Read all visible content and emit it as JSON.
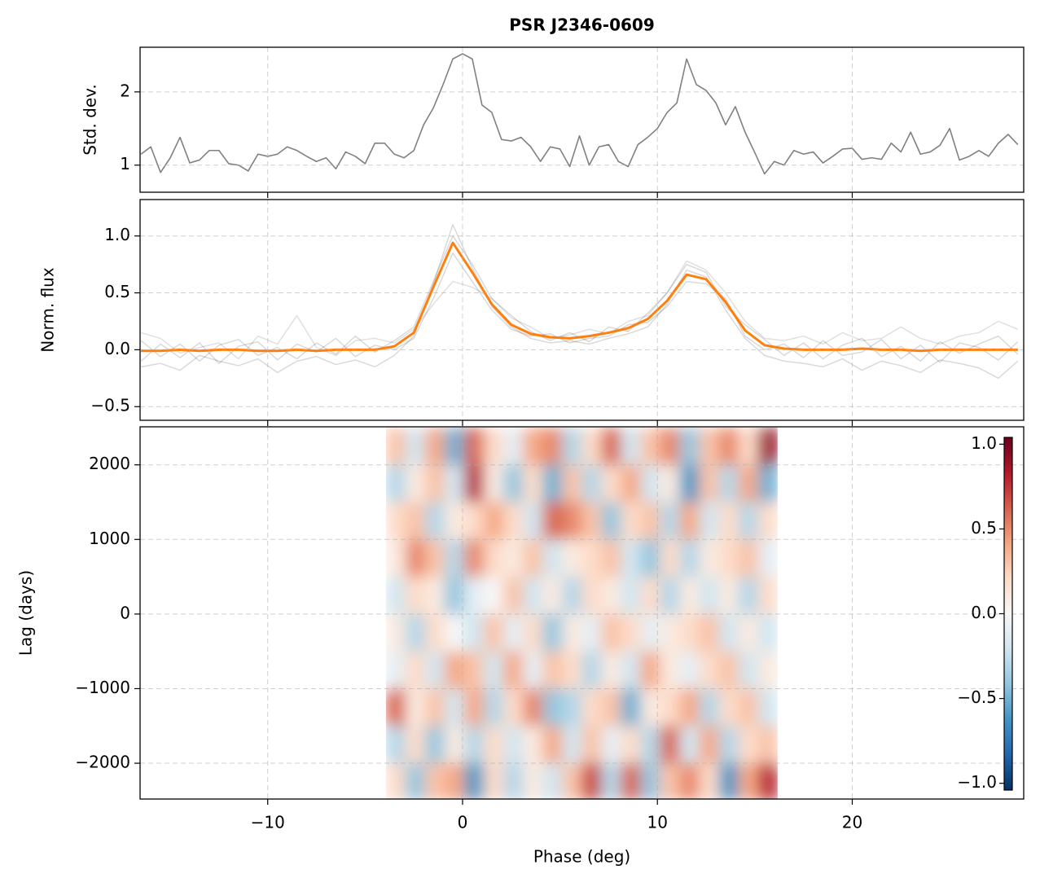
{
  "chart_data": [
    {
      "type": "line",
      "title": "PSR J2346-0609",
      "ylabel": "Std. dev.",
      "xlim": [
        -16.55,
        28.8
      ],
      "ylim": [
        0.63,
        2.61
      ],
      "xticks": [
        -10,
        0,
        10,
        20
      ],
      "yticks": [
        1,
        2
      ],
      "grid": true,
      "x": [
        -16.5,
        -16,
        -15.5,
        -15,
        -14.5,
        -14,
        -13.5,
        -13,
        -12.5,
        -12,
        -11.5,
        -11,
        -10.5,
        -10,
        -9.5,
        -9,
        -8.5,
        -8,
        -7.5,
        -7,
        -6.5,
        -6,
        -5.5,
        -5,
        -4.5,
        -4,
        -3.5,
        -3,
        -2.5,
        -2,
        -1.5,
        -1,
        -0.5,
        0,
        0.5,
        1,
        1.5,
        2,
        2.5,
        3,
        3.5,
        4,
        4.5,
        5,
        5.5,
        6,
        6.5,
        7,
        7.5,
        8,
        8.5,
        9,
        9.5,
        10,
        10.5,
        11,
        11.5,
        12,
        12.5,
        13,
        13.5,
        14,
        14.5,
        15,
        15.5,
        16,
        16.5,
        17,
        17.5,
        18,
        18.5,
        19,
        19.5,
        20,
        20.5,
        21,
        21.5,
        22,
        22.5,
        23,
        23.5,
        24,
        24.5,
        25,
        25.5,
        26,
        26.5,
        27,
        27.5,
        28,
        28.5
      ],
      "series": [
        {
          "color": "#808080",
          "width": 1.6,
          "opacity": 1,
          "values": [
            1.15,
            1.25,
            0.9,
            1.1,
            1.38,
            1.03,
            1.07,
            1.2,
            1.2,
            1.02,
            1.0,
            0.92,
            1.15,
            1.12,
            1.15,
            1.25,
            1.2,
            1.12,
            1.05,
            1.1,
            0.95,
            1.18,
            1.12,
            1.02,
            1.3,
            1.3,
            1.15,
            1.1,
            1.2,
            1.55,
            1.78,
            2.1,
            2.45,
            2.52,
            2.45,
            1.82,
            1.72,
            1.35,
            1.33,
            1.38,
            1.25,
            1.05,
            1.25,
            1.22,
            0.98,
            1.4,
            1.0,
            1.25,
            1.28,
            1.05,
            0.98,
            1.28,
            1.38,
            1.5,
            1.72,
            1.85,
            2.45,
            2.1,
            2.02,
            1.85,
            1.55,
            1.8,
            1.45,
            1.17,
            0.88,
            1.05,
            1.0,
            1.2,
            1.15,
            1.18,
            1.03,
            1.12,
            1.22,
            1.23,
            1.08,
            1.1,
            1.08,
            1.3,
            1.18,
            1.45,
            1.15,
            1.18,
            1.27,
            1.5,
            1.07,
            1.12,
            1.2,
            1.12,
            1.3,
            1.42,
            1.28
          ]
        }
      ]
    },
    {
      "type": "line",
      "ylabel": "Norm. flux",
      "xlim": [
        -16.55,
        28.8
      ],
      "ylim": [
        -0.62,
        1.32
      ],
      "xticks": [
        -10,
        0,
        10,
        20
      ],
      "yticks": [
        {
          "value": -0.5,
          "label": "−0.5"
        },
        {
          "value": 0,
          "label": "0.0"
        },
        {
          "value": 0.5,
          "label": "0.5"
        },
        {
          "value": 1,
          "label": "1.0"
        }
      ],
      "grid": true,
      "x": [
        -16.5,
        -15.5,
        -14.5,
        -13.5,
        -12.5,
        -11.5,
        -10.5,
        -9.5,
        -8.5,
        -7.5,
        -6.5,
        -5.5,
        -4.5,
        -3.5,
        -2.5,
        -1.5,
        -0.5,
        0.5,
        1.5,
        2.5,
        3.5,
        4.5,
        5.5,
        6.5,
        7.5,
        8.5,
        9.5,
        10.5,
        11.5,
        12.5,
        13.5,
        14.5,
        15.5,
        16.5,
        17.5,
        18.5,
        19.5,
        20.5,
        21.5,
        22.5,
        23.5,
        24.5,
        25.5,
        26.5,
        27.5,
        28.5
      ],
      "series": [
        {
          "color": "#000000",
          "width": 1.5,
          "opacity": 0.15,
          "values": [
            0.08,
            -0.06,
            0.05,
            -0.1,
            0.04,
            0.09,
            -0.05,
            0.02,
            -0.08,
            0.06,
            -0.04,
            0.12,
            -0.02,
            0.08,
            0.2,
            0.6,
            1.0,
            0.75,
            0.45,
            0.3,
            0.16,
            0.08,
            0.15,
            0.07,
            0.2,
            0.16,
            0.32,
            0.5,
            0.75,
            0.68,
            0.38,
            0.22,
            0.09,
            -0.05,
            0.06,
            -0.08,
            0.04,
            0.1,
            -0.06,
            0.03,
            -0.1,
            0.07,
            -0.03,
            0.05,
            0.12,
            -0.04
          ]
        },
        {
          "color": "#000000",
          "width": 1.5,
          "opacity": 0.15,
          "values": [
            -0.1,
            0.05,
            -0.07,
            0.06,
            -0.12,
            0.03,
            0.07,
            -0.09,
            0.05,
            -0.02,
            0.1,
            -0.06,
            0.04,
            0.0,
            0.1,
            0.45,
            0.85,
            0.6,
            0.35,
            0.18,
            0.12,
            0.14,
            0.06,
            0.1,
            0.12,
            0.22,
            0.24,
            0.38,
            0.6,
            0.58,
            0.45,
            0.12,
            0.0,
            0.05,
            -0.07,
            0.08,
            -0.05,
            -0.02,
            0.09,
            -0.08,
            0.04,
            -0.11,
            0.06,
            0.02,
            -0.09,
            0.07
          ]
        },
        {
          "color": "#000000",
          "width": 1.5,
          "opacity": 0.12,
          "values": [
            0.15,
            0.1,
            -0.03,
            0.02,
            0.06,
            -0.08,
            0.12,
            0.05,
            0.3,
            0.02,
            -0.05,
            0.08,
            0.1,
            0.06,
            0.18,
            0.4,
            0.6,
            0.55,
            0.45,
            0.28,
            0.2,
            0.1,
            0.13,
            0.18,
            0.14,
            0.25,
            0.3,
            0.5,
            0.78,
            0.7,
            0.5,
            0.25,
            0.1,
            0.08,
            0.12,
            0.05,
            0.15,
            0.08,
            0.1,
            0.2,
            0.1,
            0.05,
            0.12,
            0.15,
            0.25,
            0.18
          ]
        },
        {
          "color": "#000000",
          "width": 1.5,
          "opacity": 0.15,
          "values": [
            -0.15,
            -0.12,
            -0.18,
            -0.05,
            -0.1,
            -0.14,
            -0.08,
            -0.2,
            -0.1,
            -0.06,
            -0.13,
            -0.09,
            -0.15,
            -0.05,
            0.12,
            0.58,
            1.1,
            0.72,
            0.38,
            0.2,
            0.1,
            0.06,
            0.08,
            0.05,
            0.1,
            0.14,
            0.2,
            0.4,
            0.7,
            0.64,
            0.35,
            0.1,
            -0.05,
            -0.1,
            -0.12,
            -0.15,
            -0.08,
            -0.18,
            -0.1,
            -0.14,
            -0.2,
            -0.09,
            -0.12,
            -0.16,
            -0.25,
            -0.1
          ]
        },
        {
          "color": "#ff7f0e",
          "width": 3,
          "opacity": 1,
          "values": [
            -0.01,
            -0.01,
            0,
            -0.01,
            0,
            0,
            -0.01,
            -0.01,
            0,
            -0.01,
            0,
            0,
            0,
            0.03,
            0.15,
            0.55,
            0.94,
            0.68,
            0.4,
            0.22,
            0.14,
            0.11,
            0.1,
            0.12,
            0.15,
            0.19,
            0.27,
            0.43,
            0.66,
            0.62,
            0.42,
            0.17,
            0.04,
            0.01,
            0,
            0,
            0,
            0.01,
            0,
            0,
            -0.01,
            0,
            0,
            0,
            0,
            0
          ]
        }
      ]
    },
    {
      "type": "heatmap",
      "ylabel": "Lag (days)",
      "xlabel": "Phase (deg)",
      "xlim": [
        -16.55,
        28.8
      ],
      "ylim": [
        -2480,
        2510
      ],
      "xticks": [
        {
          "value": -10,
          "label": "−10"
        },
        0,
        10,
        20
      ],
      "yticks": [
        {
          "value": -2000,
          "label": "−2000"
        },
        {
          "value": -1000,
          "label": "−1000"
        },
        0,
        1000,
        2000
      ],
      "grid": true,
      "colormap": "RdBu_r",
      "x_range": [
        -3.93,
        16.17
      ],
      "y_range": [
        -2500,
        2500
      ],
      "z": [
        [
          0.3,
          -0.2,
          0.4,
          -0.5,
          0.6,
          0.2,
          -0.1,
          0.4,
          0.5,
          -0.3,
          0.2,
          0.6,
          -0.2,
          0.3,
          0.5,
          -0.4,
          0.3,
          0.5,
          0.2,
          0.9
        ],
        [
          -0.3,
          0.1,
          0.3,
          -0.2,
          0.8,
          0.1,
          -0.4,
          0.2,
          -0.5,
          0.3,
          -0.3,
          0.2,
          0.4,
          -0.2,
          0.1,
          -0.6,
          0.3,
          -0.3,
          0.4,
          -0.5
        ],
        [
          0.2,
          0.3,
          -0.3,
          0.1,
          0.2,
          0.4,
          0.2,
          -0.2,
          0.6,
          0.5,
          0.3,
          -0.4,
          0.2,
          0.3,
          -0.3,
          0.4,
          -0.2,
          0.2,
          -0.3,
          0.2
        ],
        [
          0.1,
          0.5,
          0.3,
          -0.3,
          0.5,
          0.2,
          0.1,
          0.3,
          -0.2,
          0.1,
          0.2,
          0.3,
          -0.2,
          -0.4,
          0.2,
          -0.3,
          0.1,
          0.2,
          0.3,
          -0.1
        ],
        [
          -0.2,
          0.2,
          0.1,
          -0.4,
          -0.1,
          0.0,
          0.3,
          -0.2,
          0.1,
          -0.3,
          0.2,
          0.1,
          -0.2,
          0.2,
          -0.3,
          0.1,
          -0.2,
          0.1,
          -0.3,
          0.2
        ],
        [
          0.1,
          -0.3,
          0.2,
          0.0,
          -0.2,
          0.3,
          -0.1,
          0.2,
          -0.4,
          0.1,
          -0.1,
          0.3,
          0.2,
          -0.1,
          0.1,
          0.2,
          0.3,
          -0.2,
          0.1,
          -0.2
        ],
        [
          -0.1,
          0.2,
          -0.2,
          0.4,
          0.3,
          -0.2,
          0.4,
          -0.1,
          0.3,
          0.2,
          -0.3,
          0.1,
          -0.2,
          0.4,
          0.1,
          -0.1,
          0.2,
          0.3,
          -0.2,
          0.1
        ],
        [
          0.6,
          0.1,
          0.3,
          -0.2,
          0.4,
          -0.3,
          0.2,
          0.5,
          -0.4,
          -0.3,
          0.2,
          0.3,
          -0.5,
          0.1,
          0.2,
          0.4,
          -0.3,
          0.2,
          0.3,
          -0.2
        ],
        [
          -0.3,
          0.2,
          -0.4,
          0.1,
          -0.3,
          0.2,
          -0.2,
          0.1,
          0.4,
          -0.2,
          0.3,
          -0.1,
          0.2,
          -0.3,
          0.6,
          -0.2,
          0.4,
          -0.3,
          0.2,
          0.3
        ],
        [
          0.2,
          -0.4,
          0.3,
          0.4,
          -0.6,
          0.2,
          -0.3,
          0.1,
          -0.2,
          0.3,
          0.7,
          -0.3,
          0.6,
          -0.4,
          0.3,
          0.5,
          0.2,
          -0.6,
          0.4,
          0.8
        ]
      ],
      "clim": [
        -1.04,
        1.04
      ],
      "cticks": [
        {
          "value": -1,
          "label": "−1.0"
        },
        {
          "value": -0.5,
          "label": "−0.5"
        },
        {
          "value": 0,
          "label": "0.0"
        },
        {
          "value": 0.5,
          "label": "0.5"
        },
        {
          "value": 1,
          "label": "1.0"
        }
      ]
    }
  ]
}
